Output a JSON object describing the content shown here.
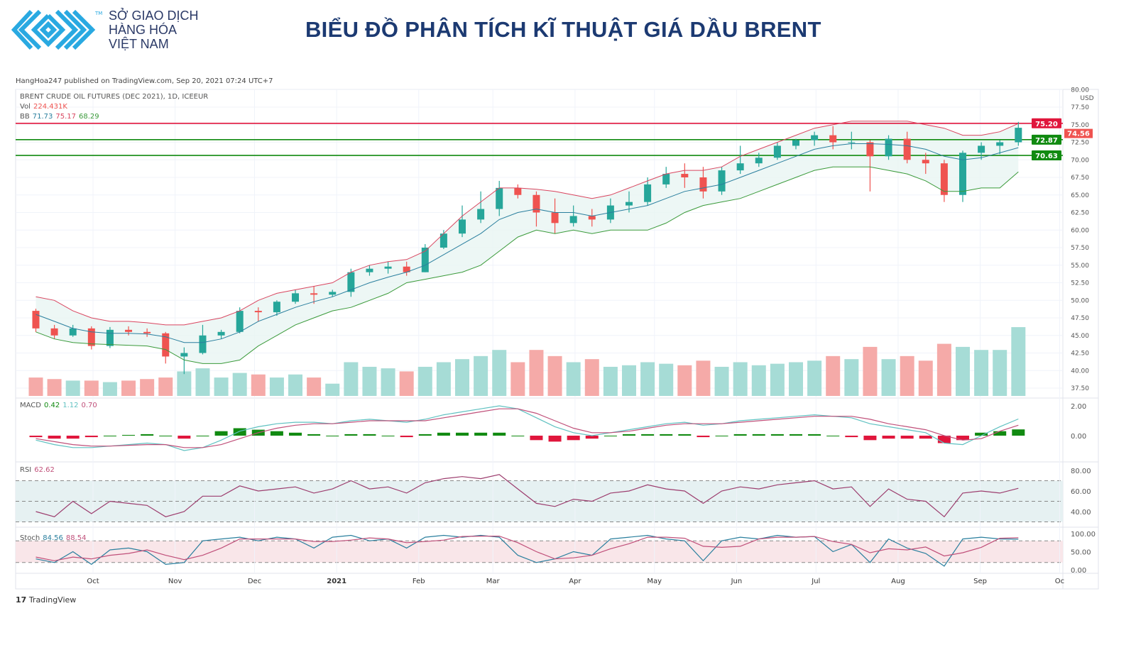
{
  "header": {
    "logo_lines": [
      "SỞ GIAO DỊCH",
      "HÀNG HÓA",
      "VIỆT NAM"
    ],
    "logo_tm": "TM",
    "title": "BIỂU ĐỒ PHÂN TÍCH KĨ THUẬT GIÁ DẦU BRENT",
    "brand_color": "#29a9e1",
    "title_color": "#1c3a72"
  },
  "published": "HangHoa247 published on TradingView.com, Sep 20, 2021 07:24 UTC+7",
  "legend": {
    "symbol": "BRENT CRUDE OIL FUTURES (DEC 2021), 1D, ICEEUR",
    "vol_label": "Vol",
    "vol_value": "224.431K",
    "bb_label": "BB",
    "bb_basis": "71.73",
    "bb_upper": "75.17",
    "bb_lower": "68.29",
    "macd_label": "MACD",
    "macd_hist": "0.42",
    "macd_line": "1.12",
    "macd_signal": "0.70",
    "rsi_label": "RSI",
    "rsi_value": "62.62",
    "stoch_label": "Stoch",
    "stoch_k": "84.56",
    "stoch_d": "88.54"
  },
  "footer": {
    "brand": "TradingView"
  },
  "chart_data": {
    "type": "candlestick",
    "currency": "USD",
    "price_ticks": [
      "80.00",
      "77.50",
      "75.00",
      "72.50",
      "70.00",
      "67.50",
      "65.00",
      "62.50",
      "60.00",
      "57.50",
      "55.00",
      "52.50",
      "50.00",
      "47.50",
      "45.00",
      "42.50",
      "40.00",
      "37.50"
    ],
    "macd_ticks": [
      "2.00",
      "0.00"
    ],
    "rsi_ticks": [
      "80.00",
      "60.00",
      "40.00"
    ],
    "stoch_ticks": [
      "100.00",
      "50.00",
      "0.00"
    ],
    "time_ticks": [
      {
        "label": "Oct",
        "date": "2020-10-01"
      },
      {
        "label": "Nov",
        "date": "2020-11-01"
      },
      {
        "label": "Dec",
        "date": "2020-12-01"
      },
      {
        "label": "2021",
        "date": "2021-01-01",
        "bold": true
      },
      {
        "label": "Feb",
        "date": "2021-02-01"
      },
      {
        "label": "Mar",
        "date": "2021-03-01"
      },
      {
        "label": "Apr",
        "date": "2021-04-01"
      },
      {
        "label": "May",
        "date": "2021-05-01"
      },
      {
        "label": "Jun",
        "date": "2021-06-01"
      },
      {
        "label": "Jul",
        "date": "2021-07-01"
      },
      {
        "label": "Aug",
        "date": "2021-08-01"
      },
      {
        "label": "Sep",
        "date": "2021-09-01"
      },
      {
        "label": "Oc",
        "date": "2021-10-01"
      }
    ],
    "horizontal_lines": [
      {
        "price": "75.20",
        "color": "#e0163c"
      },
      {
        "price": "72.87",
        "color": "#118a11"
      },
      {
        "price": "70.63",
        "color": "#118a11"
      }
    ],
    "last_price": {
      "price": "74.56",
      "color": "#ef5350"
    },
    "colors": {
      "up": "#26a69a",
      "down": "#ef5350",
      "bb_upper": "#d9455f",
      "bb_basis": "#2a7f9e",
      "bb_lower": "#3a9a3a",
      "macd": "#5fc1c1",
      "signal": "#c0507a",
      "hist_pos": "#118a11",
      "hist_neg": "#e0163c",
      "rsi": "#9c3d6e",
      "stoch_k": "#2a7f9e",
      "stoch_d": "#c0507a"
    },
    "dates": [
      "2020-09-07",
      "2020-09-14",
      "2020-09-21",
      "2020-09-28",
      "2020-10-05",
      "2020-10-12",
      "2020-10-19",
      "2020-10-26",
      "2020-11-02",
      "2020-11-09",
      "2020-11-16",
      "2020-11-23",
      "2020-11-30",
      "2020-12-07",
      "2020-12-14",
      "2020-12-21",
      "2020-12-28",
      "2021-01-04",
      "2021-01-11",
      "2021-01-18",
      "2021-01-25",
      "2021-02-01",
      "2021-02-08",
      "2021-02-15",
      "2021-02-22",
      "2021-03-01",
      "2021-03-08",
      "2021-03-15",
      "2021-03-22",
      "2021-03-29",
      "2021-04-05",
      "2021-04-12",
      "2021-04-19",
      "2021-04-26",
      "2021-05-03",
      "2021-05-10",
      "2021-05-17",
      "2021-05-24",
      "2021-05-31",
      "2021-06-07",
      "2021-06-14",
      "2021-06-21",
      "2021-06-28",
      "2021-07-05",
      "2021-07-12",
      "2021-07-19",
      "2021-07-26",
      "2021-08-02",
      "2021-08-09",
      "2021-08-16",
      "2021-08-23",
      "2021-08-30",
      "2021-09-06",
      "2021-09-13"
    ],
    "open": [
      48.5,
      46,
      45,
      46,
      43.5,
      45.8,
      45.5,
      45.3,
      42,
      42.5,
      45,
      45.5,
      48.5,
      48.3,
      49.8,
      51,
      50.8,
      51.2,
      54,
      54.5,
      54.8,
      54,
      57.5,
      59.5,
      61.5,
      63,
      66,
      65,
      62.5,
      61,
      62,
      61.5,
      63.5,
      64,
      66.5,
      68,
      67.5,
      65.5,
      68.5,
      69.5,
      70.3,
      72,
      72.8,
      73.5,
      72.5,
      72.5,
      70.5,
      73,
      70,
      69.5,
      65,
      71,
      72,
      72.5
    ],
    "high": [
      48.8,
      46.5,
      46.5,
      46.3,
      46.2,
      46.3,
      46,
      45.5,
      43.3,
      46.5,
      45.8,
      49,
      49,
      50,
      51.5,
      52,
      51.5,
      54.5,
      55,
      55.5,
      55.5,
      58,
      60,
      63.5,
      65.5,
      67,
      66.5,
      65.5,
      64.5,
      63.5,
      63,
      64.5,
      65.5,
      67.5,
      69,
      69.5,
      69,
      69,
      72,
      71,
      72.5,
      73,
      74,
      74.8,
      74,
      72.8,
      73.5,
      74,
      71,
      70,
      71.3,
      72.5,
      72.8,
      75.4
    ],
    "low": [
      45.5,
      44.5,
      44.8,
      43,
      43.2,
      45,
      44.8,
      41,
      39.5,
      42.3,
      44.5,
      45.3,
      47,
      47.8,
      49.5,
      49.5,
      50.5,
      50.5,
      53.5,
      53.8,
      53.5,
      54,
      57.3,
      59,
      61,
      62,
      64.5,
      60.5,
      59.5,
      60.5,
      60.5,
      61,
      62.5,
      63.5,
      66,
      66,
      64.5,
      65,
      68,
      69,
      70,
      71.5,
      72,
      71.5,
      71.5,
      65.5,
      70,
      69.5,
      68,
      64,
      64,
      70,
      70.8,
      72
    ],
    "close": [
      46,
      45,
      46,
      43.5,
      45.8,
      45.5,
      45.3,
      42,
      42.5,
      45,
      45.5,
      48.5,
      48.3,
      49.8,
      51,
      50.8,
      51.2,
      54,
      54.5,
      54.8,
      54,
      57.5,
      59.5,
      61.5,
      63,
      66,
      65,
      62.5,
      61,
      62,
      61.5,
      63.5,
      64,
      66.5,
      68,
      67.5,
      65.5,
      68.5,
      69.5,
      70.3,
      72,
      72.8,
      73.5,
      72.5,
      72.5,
      70.5,
      73,
      70,
      69.5,
      65,
      71,
      72,
      72.5,
      74.56
    ],
    "volume_k": [
      60,
      55,
      50,
      50,
      45,
      50,
      55,
      60,
      80,
      90,
      60,
      75,
      70,
      60,
      70,
      60,
      40,
      110,
      95,
      90,
      80,
      95,
      110,
      120,
      130,
      150,
      110,
      150,
      130,
      110,
      120,
      95,
      100,
      110,
      105,
      100,
      115,
      95,
      110,
      100,
      105,
      110,
      115,
      130,
      120,
      160,
      120,
      130,
      115,
      170,
      160,
      150,
      150,
      224.431
    ],
    "bb_upper": [
      50.5,
      50,
      48.5,
      47.5,
      47,
      47,
      46.8,
      46.5,
      46.5,
      47,
      47.5,
      48.5,
      50,
      51,
      51.5,
      52,
      52.5,
      54,
      55,
      55.5,
      55.8,
      57,
      59.5,
      62,
      64,
      66,
      66,
      65.8,
      65.5,
      65,
      64.5,
      65,
      66,
      67,
      68,
      68.5,
      68.5,
      69,
      70.5,
      71.5,
      72.5,
      73.5,
      74.5,
      75,
      75.5,
      75.5,
      75.5,
      75.5,
      75,
      74.5,
      73.5,
      73.5,
      74,
      75.17
    ],
    "bb_basis": [
      48,
      47,
      46,
      45.5,
      45.3,
      45.3,
      45.2,
      44.8,
      44,
      44,
      44.5,
      45.5,
      47,
      48,
      49,
      49.8,
      50.5,
      51.5,
      52.5,
      53.3,
      54,
      55,
      56.5,
      58,
      59.5,
      61.5,
      62.5,
      63,
      62.5,
      62.5,
      62,
      62.5,
      63,
      63.5,
      64.5,
      65.5,
      66,
      66.5,
      67.5,
      68.5,
      69.5,
      70.5,
      71.5,
      72,
      72.3,
      72.3,
      72.2,
      72,
      71.5,
      70.5,
      70,
      70.3,
      71,
      71.73
    ],
    "bb_lower": [
      45.5,
      44.5,
      44,
      43.8,
      43.7,
      43.6,
      43.5,
      43,
      41.5,
      41,
      41,
      41.5,
      43.5,
      45,
      46.5,
      47.5,
      48.5,
      49,
      50,
      51,
      52.5,
      53,
      53.5,
      54,
      55,
      57,
      59,
      60,
      59.5,
      60,
      59.5,
      60,
      60,
      60,
      61,
      62.5,
      63.5,
      64,
      64.5,
      65.5,
      66.5,
      67.5,
      68.5,
      69,
      69,
      69,
      68.5,
      68,
      67,
      65.5,
      65.5,
      66,
      66,
      68.29
    ],
    "macd": [
      -0.3,
      -0.6,
      -0.8,
      -0.8,
      -0.7,
      -0.6,
      -0.5,
      -0.6,
      -1,
      -0.8,
      -0.3,
      0.3,
      0.6,
      0.8,
      0.9,
      0.9,
      0.8,
      1,
      1.1,
      1.0,
      0.9,
      1.1,
      1.4,
      1.6,
      1.8,
      2,
      1.8,
      1.2,
      0.6,
      0.2,
      0,
      0.2,
      0.4,
      0.6,
      0.8,
      0.9,
      0.7,
      0.8,
      1,
      1.1,
      1.2,
      1.3,
      1.4,
      1.3,
      1.2,
      0.8,
      0.6,
      0.4,
      0.2,
      -0.5,
      -0.6,
      0,
      0.6,
      1.12
    ],
    "macd_signal": [
      -0.2,
      -0.4,
      -0.6,
      -0.7,
      -0.7,
      -0.65,
      -0.6,
      -0.6,
      -0.8,
      -0.8,
      -0.6,
      -0.2,
      0.2,
      0.5,
      0.7,
      0.8,
      0.8,
      0.9,
      1,
      1,
      1,
      1,
      1.2,
      1.4,
      1.6,
      1.8,
      1.8,
      1.5,
      1,
      0.5,
      0.2,
      0.2,
      0.3,
      0.5,
      0.7,
      0.8,
      0.8,
      0.8,
      0.9,
      1,
      1.1,
      1.2,
      1.3,
      1.3,
      1.3,
      1.1,
      0.8,
      0.6,
      0.4,
      0,
      -0.3,
      -0.2,
      0.3,
      0.7
    ],
    "rsi": [
      40,
      35,
      50,
      38,
      50,
      48,
      46,
      35,
      40,
      55,
      55,
      65,
      60,
      62,
      64,
      58,
      62,
      70,
      62,
      64,
      58,
      68,
      72,
      74,
      72,
      76,
      62,
      48,
      45,
      52,
      50,
      58,
      60,
      66,
      62,
      60,
      48,
      60,
      64,
      62,
      66,
      68,
      70,
      62,
      64,
      45,
      62,
      52,
      50,
      35,
      58,
      60,
      58,
      62.62
    ],
    "rsi_bands": [
      70,
      50,
      30
    ],
    "stoch_k": [
      30,
      20,
      50,
      15,
      55,
      60,
      50,
      15,
      20,
      80,
      85,
      90,
      80,
      90,
      85,
      60,
      90,
      95,
      80,
      85,
      60,
      90,
      95,
      90,
      95,
      90,
      40,
      20,
      30,
      50,
      40,
      85,
      90,
      95,
      85,
      80,
      25,
      80,
      90,
      85,
      95,
      90,
      92,
      50,
      70,
      20,
      85,
      60,
      45,
      10,
      85,
      90,
      85,
      84.56
    ],
    "stoch_d": [
      35,
      25,
      35,
      30,
      40,
      45,
      55,
      40,
      28,
      40,
      60,
      85,
      85,
      85,
      85,
      78,
      78,
      82,
      88,
      85,
      75,
      78,
      82,
      92,
      93,
      93,
      75,
      50,
      30,
      33,
      40,
      58,
      72,
      90,
      90,
      87,
      65,
      62,
      65,
      85,
      90,
      90,
      92,
      78,
      70,
      47,
      58,
      55,
      63,
      38,
      47,
      62,
      87,
      88.54
    ],
    "stoch_bands": [
      80,
      20
    ]
  }
}
